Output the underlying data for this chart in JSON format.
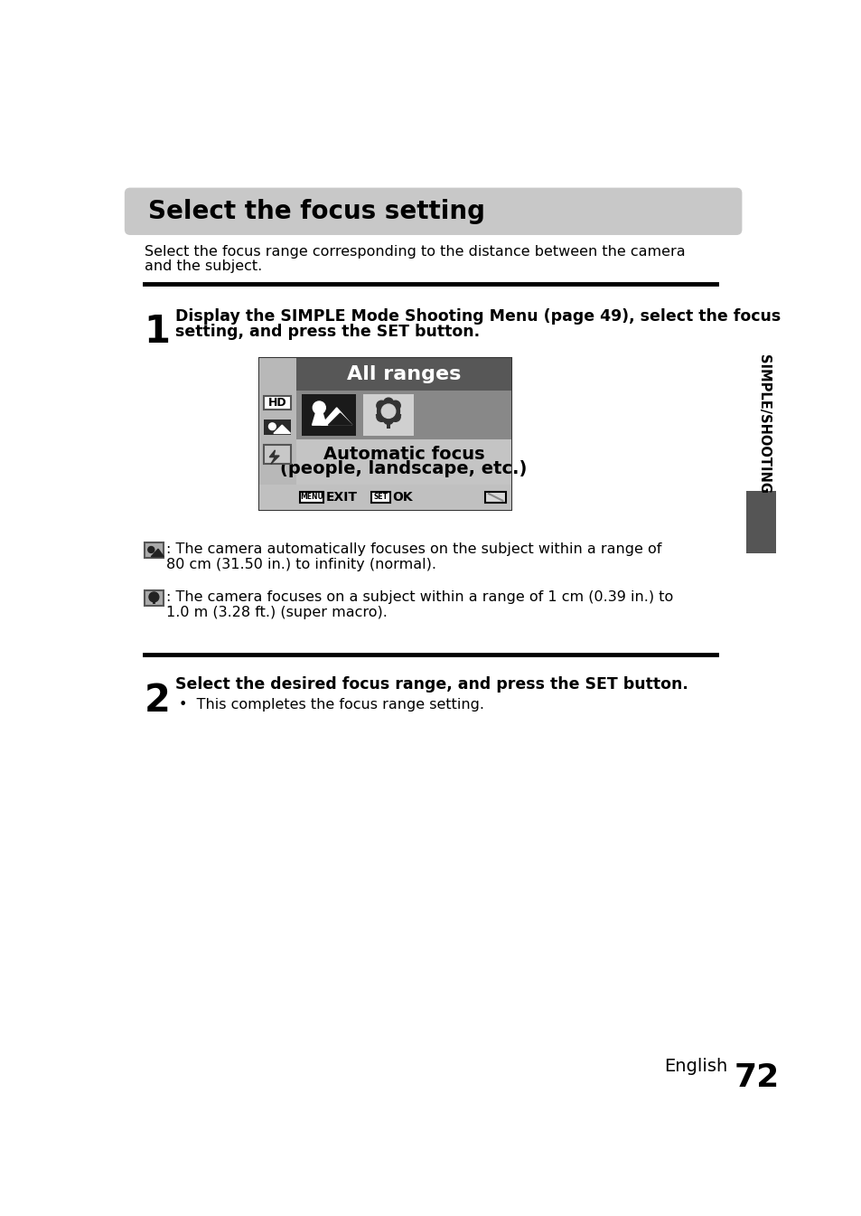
{
  "title": "Select the focus setting",
  "subtitle_line1": "Select the focus range corresponding to the distance between the camera",
  "subtitle_line2": "and the subject.",
  "step1_number": "1",
  "step1_line1": "Display the SIMPLE Mode Shooting Menu (page 49), select the focus",
  "step1_line2": "setting, and press the SET button.",
  "step2_number": "2",
  "step2_bold": "Select the desired focus range, and press the SET button.",
  "step2_bullet": "•  This completes the focus range setting.",
  "screen_title": "All ranges",
  "screen_caption_line1": "Automatic focus",
  "screen_caption_line2": "(people, landscape, etc.)",
  "bullet1_line1": ": The camera automatically focuses on the subject within a range of",
  "bullet1_line2": "80 cm (31.50 in.) to infinity (normal).",
  "bullet2_line1": ": The camera focuses on a subject within a range of 1 cm (0.39 in.) to",
  "bullet2_line2": "1.0 m (3.28 ft.) (super macro).",
  "sidebar_text": "SIMPLE/SHOOTING",
  "page_label": "English",
  "page_number": "72",
  "bg_color": "#ffffff",
  "title_bg": "#c8c8c8",
  "header_dark": "#575757",
  "icon_row_gray": "#888888",
  "left_col_gray": "#b8b8b8",
  "caption_gray": "#c4c4c4",
  "bottom_bar_gray": "#c0c0c0",
  "sidebar_dark": "#555555"
}
